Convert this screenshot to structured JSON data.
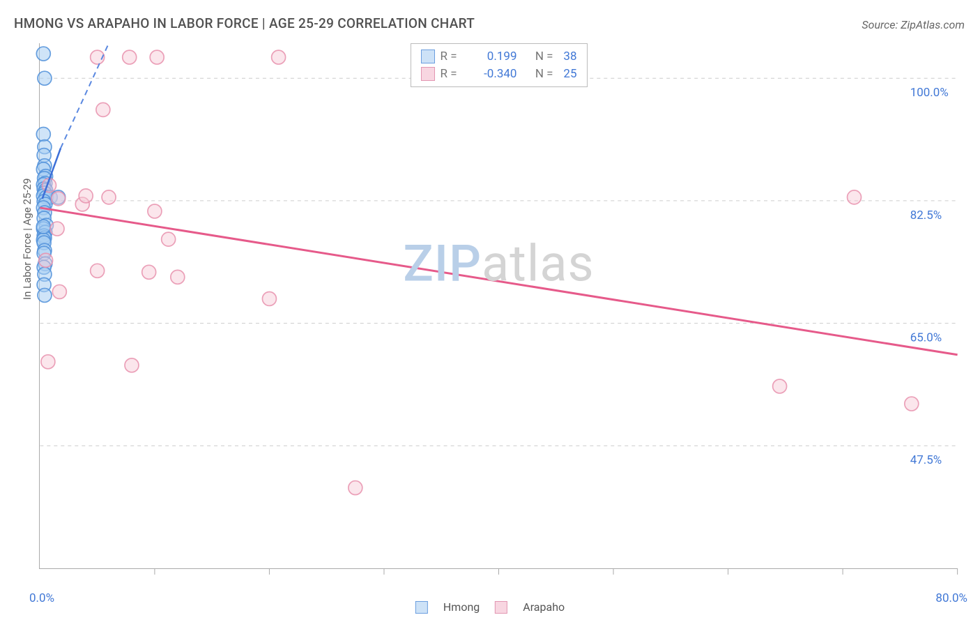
{
  "title": "HMONG VS ARAPAHO IN LABOR FORCE | AGE 25-29 CORRELATION CHART",
  "source_label": "Source: ZipAtlas.com",
  "y_axis_label": "In Labor Force | Age 25-29",
  "watermark": {
    "part1": "ZIP",
    "part2": "atlas"
  },
  "chart": {
    "type": "scatter-correlation",
    "background_color": "#ffffff",
    "grid_color": "#cccccc",
    "x_range": [
      0,
      80
    ],
    "y_range": [
      30,
      105
    ],
    "x_ticks": [
      0,
      10,
      20,
      30,
      40,
      50,
      60,
      70,
      80
    ],
    "y_ticks": [
      47.5,
      65.0,
      82.5,
      100.0
    ],
    "y_tick_labels": [
      "47.5%",
      "65.0%",
      "82.5%",
      "100.0%"
    ],
    "x_min_label": "0.0%",
    "x_max_label": "80.0%",
    "marker_radius": 10,
    "series": [
      {
        "name": "Hmong",
        "color_fill": "#a7cef2",
        "color_stroke": "#4f8fd9",
        "R": "0.199",
        "N": "38",
        "trend_solid": {
          "x1": 0.2,
          "y1": 82.8,
          "x2": 1.8,
          "y2": 90.0
        },
        "trend_dash": {
          "x1": 1.8,
          "y1": 90.0,
          "x2": 6.0,
          "y2": 105.0
        },
        "points": [
          [
            0.3,
            103.5
          ],
          [
            0.4,
            100.0
          ],
          [
            0.3,
            92.0
          ],
          [
            0.4,
            90.2
          ],
          [
            0.35,
            89.0
          ],
          [
            0.4,
            87.5
          ],
          [
            0.3,
            87.0
          ],
          [
            0.5,
            86.0
          ],
          [
            0.38,
            85.7
          ],
          [
            0.45,
            85.0
          ],
          [
            0.3,
            84.8
          ],
          [
            0.35,
            84.2
          ],
          [
            0.5,
            84.0
          ],
          [
            0.4,
            83.6
          ],
          [
            0.3,
            83.2
          ],
          [
            0.55,
            83.0
          ],
          [
            0.9,
            83.0
          ],
          [
            1.6,
            83.0
          ],
          [
            0.35,
            82.4
          ],
          [
            0.45,
            82.0
          ],
          [
            0.3,
            81.5
          ],
          [
            0.4,
            80.8
          ],
          [
            0.35,
            80.0
          ],
          [
            0.55,
            79.0
          ],
          [
            0.3,
            78.5
          ],
          [
            0.45,
            78.0
          ],
          [
            0.35,
            77.5
          ],
          [
            0.4,
            77.2
          ],
          [
            0.3,
            76.9
          ],
          [
            0.35,
            76.5
          ],
          [
            0.4,
            75.4
          ],
          [
            0.35,
            75.0
          ],
          [
            0.45,
            73.5
          ],
          [
            0.35,
            73.0
          ],
          [
            0.4,
            72.0
          ],
          [
            0.35,
            70.5
          ],
          [
            0.4,
            69.0
          ],
          [
            0.3,
            78.8
          ]
        ]
      },
      {
        "name": "Arapaho",
        "color_fill": "#f6c8d5",
        "color_stroke": "#e890ad",
        "R": "-0.340",
        "N": "25",
        "trend_solid": {
          "x1": 0.0,
          "y1": 81.5,
          "x2": 80.0,
          "y2": 60.5
        },
        "points": [
          [
            5.0,
            103.0
          ],
          [
            7.8,
            103.0
          ],
          [
            10.2,
            103.0
          ],
          [
            20.8,
            103.0
          ],
          [
            5.5,
            95.5
          ],
          [
            0.8,
            84.7
          ],
          [
            6.0,
            83.0
          ],
          [
            1.6,
            82.8
          ],
          [
            3.7,
            82.0
          ],
          [
            10.0,
            81.0
          ],
          [
            1.5,
            78.5
          ],
          [
            11.2,
            77.0
          ],
          [
            0.5,
            74.0
          ],
          [
            5.0,
            72.5
          ],
          [
            9.5,
            72.3
          ],
          [
            12.0,
            71.6
          ],
          [
            1.7,
            69.5
          ],
          [
            20.0,
            68.5
          ],
          [
            0.7,
            59.5
          ],
          [
            8.0,
            59.0
          ],
          [
            27.5,
            41.5
          ],
          [
            64.5,
            56.0
          ],
          [
            76.0,
            53.5
          ],
          [
            71.0,
            83.0
          ],
          [
            4.0,
            83.2
          ]
        ]
      }
    ]
  },
  "legend_top": {
    "r_label": "R =",
    "n_label": "N ="
  },
  "legend_bottom": [
    {
      "swatch": "blue",
      "label": "Hmong"
    },
    {
      "swatch": "pink",
      "label": "Arapaho"
    }
  ]
}
